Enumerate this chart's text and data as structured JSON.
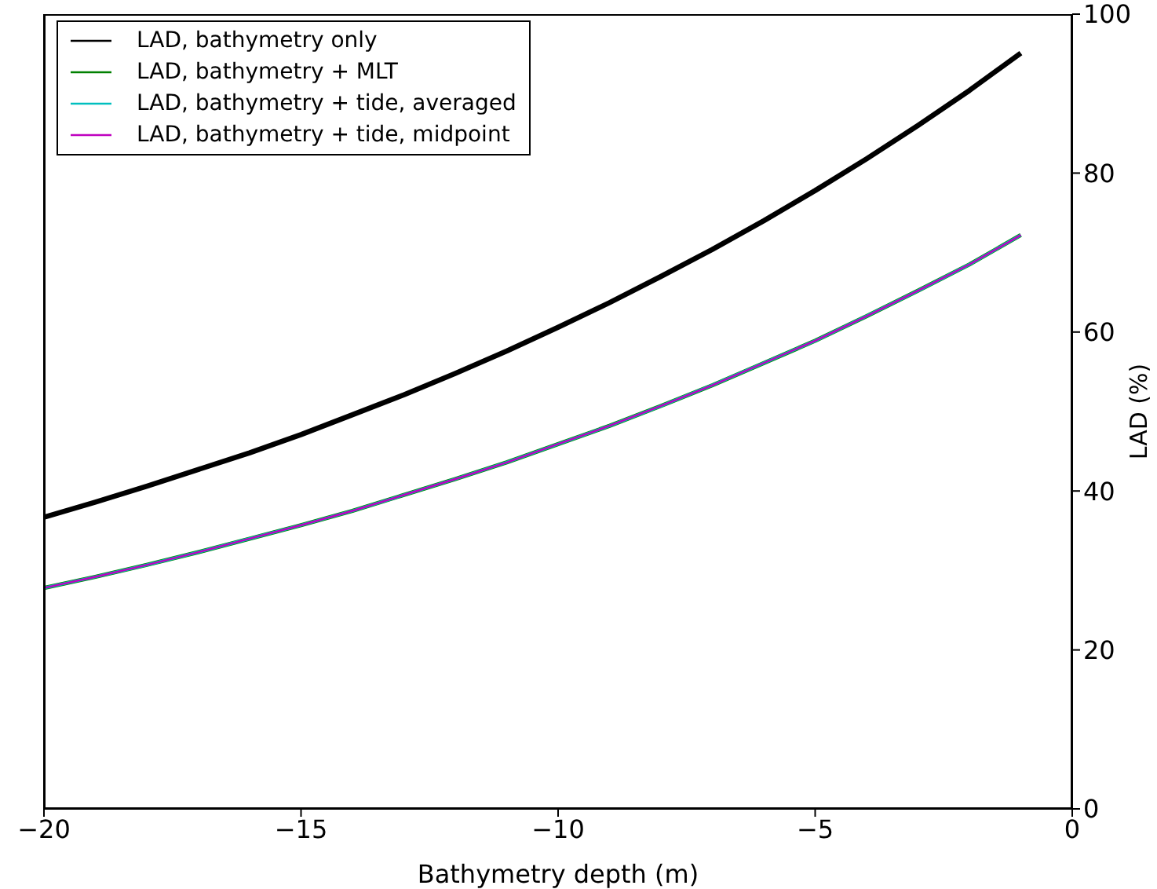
{
  "chart_data": {
    "type": "line",
    "xlabel": "Bathymetry depth (m)",
    "ylabel": "LAD (%)",
    "x": [
      -20,
      -19,
      -18,
      -17,
      -16,
      -15,
      -14,
      -13,
      -12,
      -11,
      -10,
      -9,
      -8,
      -7,
      -6,
      -5,
      -4,
      -3,
      -2,
      -1
    ],
    "series": [
      {
        "name": "LAD, bathymetry only",
        "color": "#000000",
        "values": [
          36.7,
          38.6,
          40.6,
          42.7,
          44.8,
          47.1,
          49.6,
          52.1,
          54.8,
          57.6,
          60.6,
          63.7,
          67.0,
          70.4,
          74.0,
          77.8,
          81.8,
          86.0,
          90.4,
          95.1
        ]
      },
      {
        "name": "LAD, bathymetry + MLT",
        "color": "#008000",
        "values": [
          27.8,
          29.2,
          30.7,
          32.3,
          34.0,
          35.7,
          37.5,
          39.5,
          41.5,
          43.6,
          45.9,
          48.2,
          50.7,
          53.3,
          56.1,
          58.9,
          62.0,
          65.2,
          68.5,
          72.2
        ]
      },
      {
        "name": "LAD, bathymetry + tide, averaged",
        "color": "#00bfbf",
        "values": [
          27.8,
          29.2,
          30.7,
          32.3,
          34.0,
          35.7,
          37.5,
          39.5,
          41.5,
          43.6,
          45.9,
          48.2,
          50.7,
          53.3,
          56.1,
          58.9,
          62.0,
          65.2,
          68.5,
          72.2
        ]
      },
      {
        "name": "LAD, bathymetry + tide, midpoint",
        "color": "#bf00bf",
        "values": [
          27.8,
          29.2,
          30.7,
          32.3,
          34.0,
          35.7,
          37.5,
          39.5,
          41.5,
          43.6,
          45.9,
          48.2,
          50.7,
          53.3,
          56.1,
          58.9,
          62.0,
          65.2,
          68.5,
          72.2
        ]
      }
    ],
    "xlim": [
      -20,
      0
    ],
    "xticks": [
      -20,
      -15,
      -10,
      -5,
      0
    ],
    "ylim": [
      0,
      100
    ],
    "yticks": [
      0,
      20,
      40,
      60,
      80,
      100
    ],
    "legend": "top left",
    "grid": false,
    "marker": "none",
    "line_style": "solid"
  }
}
